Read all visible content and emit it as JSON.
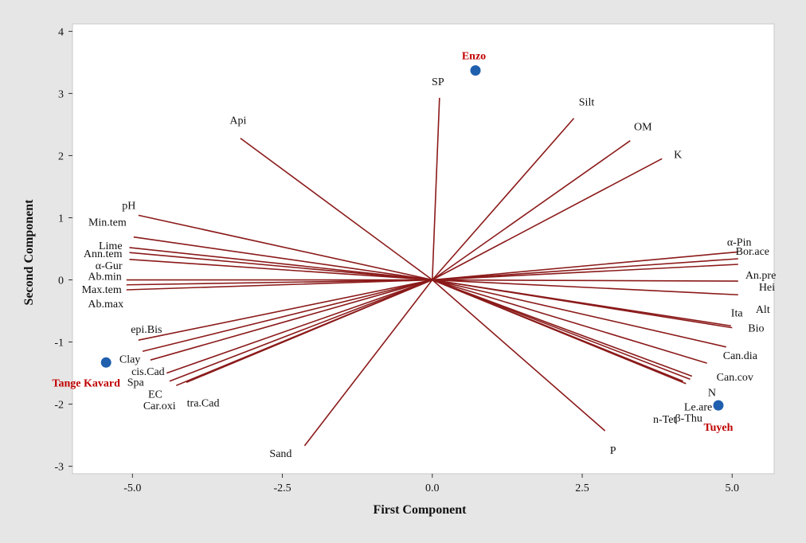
{
  "chart_data": {
    "type": "scatter",
    "title": "",
    "xlabel": "First Component",
    "ylabel": "Second Component",
    "xlim": [
      -6.0,
      5.7
    ],
    "ylim": [
      -3.12,
      4.12
    ],
    "xticks": [
      -5.0,
      -2.5,
      0.0,
      2.5,
      5.0
    ],
    "xtick_labels": [
      "-5.0",
      "-2.5",
      "0.0",
      "2.5",
      "5.0"
    ],
    "yticks": [
      -3,
      -2,
      -1,
      0,
      1,
      2,
      3,
      4
    ],
    "ytick_labels": [
      "-3",
      "-2",
      "-1",
      "0",
      "1",
      "2",
      "3",
      "4"
    ],
    "grid": false,
    "colors": {
      "vector": "#8b1a1a",
      "point": "#1f5fae",
      "site_label": "#c00000",
      "frame_bg": "#e6e6e6",
      "plot_bg": "#ffffff",
      "border": "#c8c8c8"
    },
    "vectors": [
      {
        "name": "SP",
        "x": 0.12,
        "y": 2.93
      },
      {
        "name": "Silt",
        "x": 2.36,
        "y": 2.6
      },
      {
        "name": "OM",
        "x": 3.3,
        "y": 2.24
      },
      {
        "name": "K",
        "x": 3.83,
        "y": 1.95
      },
      {
        "name": "Api",
        "x": -3.2,
        "y": 2.28
      },
      {
        "name": "pH",
        "x": -4.9,
        "y": 1.04
      },
      {
        "name": "Min.tem",
        "x": -4.98,
        "y": 0.69
      },
      {
        "name": "Lime",
        "x": -5.05,
        "y": 0.52
      },
      {
        "name": "Ann.tem",
        "x": -5.05,
        "y": 0.44
      },
      {
        "name": "α-Gur",
        "x": -5.05,
        "y": 0.33
      },
      {
        "name": "Ab.min",
        "x": -5.1,
        "y": 0.0
      },
      {
        "name": "Max.tem",
        "x": -5.1,
        "y": -0.08
      },
      {
        "name": "Ab.max",
        "x": -5.1,
        "y": -0.16
      },
      {
        "name": "epi.Bis",
        "x": -4.9,
        "y": -0.97
      },
      {
        "name": "Clay",
        "x": -4.83,
        "y": -1.15
      },
      {
        "name": "cis.Cad",
        "x": -4.7,
        "y": -1.29
      },
      {
        "name": "Spa",
        "x": -4.43,
        "y": -1.5
      },
      {
        "name": "EC",
        "x": -4.38,
        "y": -1.63
      },
      {
        "name": "Car.oxi",
        "x": -4.27,
        "y": -1.7
      },
      {
        "name": "tra.Cad",
        "x": -4.1,
        "y": -1.65
      },
      {
        "name": "Sand",
        "x": -2.13,
        "y": -2.67
      },
      {
        "name": "P",
        "x": 2.88,
        "y": -2.43
      },
      {
        "name": "α-Pin",
        "x": 5.1,
        "y": 0.45
      },
      {
        "name": "Bor.ace",
        "x": 5.1,
        "y": 0.34
      },
      {
        "name": "An.pre",
        "x": 5.1,
        "y": 0.25
      },
      {
        "name": "Hei",
        "x": 5.1,
        "y": -0.02
      },
      {
        "name": "Alt",
        "x": 5.1,
        "y": -0.24
      },
      {
        "name": "Ita",
        "x": 4.98,
        "y": -0.74
      },
      {
        "name": "Bio",
        "x": 5.0,
        "y": -0.77
      },
      {
        "name": "Can.dia",
        "x": 4.9,
        "y": -1.08
      },
      {
        "name": "Can.cov",
        "x": 4.58,
        "y": -1.34
      },
      {
        "name": "N",
        "x": 4.33,
        "y": -1.55
      },
      {
        "name": "Le.are",
        "x": 4.3,
        "y": -1.6
      },
      {
        "name": "n-Tet",
        "x": 4.23,
        "y": -1.67
      },
      {
        "name": "β-Thu",
        "x": 4.18,
        "y": -1.63
      }
    ],
    "points": [
      {
        "name": "Enzo",
        "x": 0.72,
        "y": 3.37
      },
      {
        "name": "Tange Kavard",
        "x": -5.44,
        "y": -1.33
      },
      {
        "name": "Tuyeh",
        "x": 4.77,
        "y": -2.02
      }
    ]
  }
}
